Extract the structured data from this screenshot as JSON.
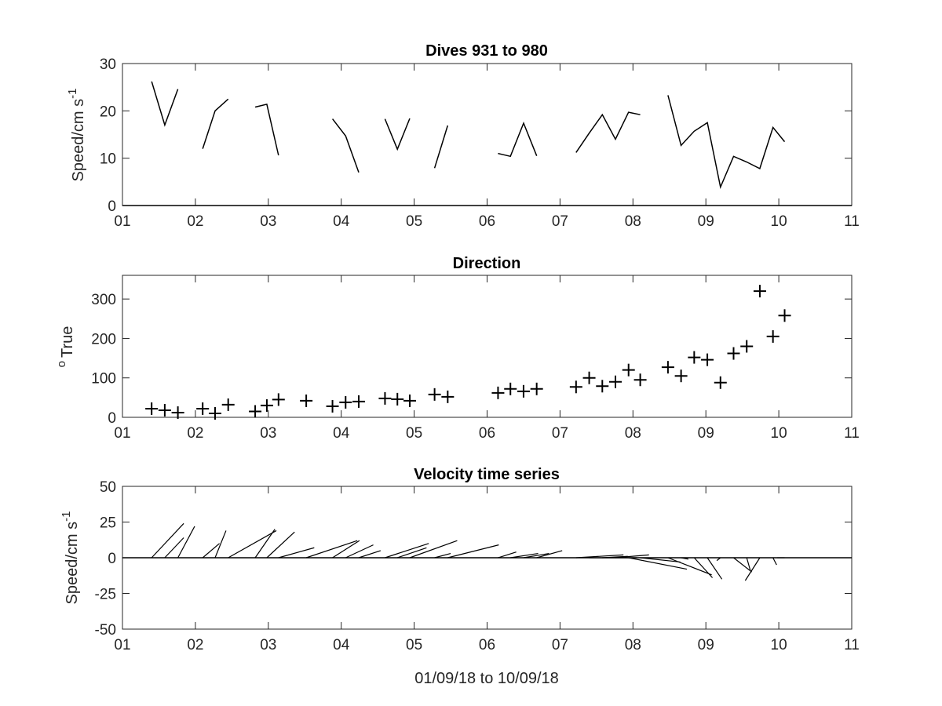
{
  "chart_data": [
    {
      "type": "line",
      "title": "Dives 931 to 980",
      "xlabel": "",
      "ylabel": "Speed/cm s",
      "ylabel_superscript": "-1",
      "xlim": [
        1,
        11
      ],
      "ylim": [
        0,
        30
      ],
      "xticks": [
        1,
        2,
        3,
        4,
        5,
        6,
        7,
        8,
        9,
        10,
        11
      ],
      "xtick_labels": [
        "01",
        "02",
        "03",
        "04",
        "05",
        "06",
        "07",
        "08",
        "09",
        "10",
        "11"
      ],
      "yticks": [
        0,
        10,
        20,
        30
      ],
      "ytick_labels": [
        "0",
        "10",
        "20",
        "30"
      ],
      "segments": [
        [
          [
            1.4,
            26.2
          ],
          [
            1.58,
            17.0
          ],
          [
            1.76,
            24.6
          ]
        ],
        [
          [
            2.1,
            12.0
          ],
          [
            2.27,
            20.0
          ],
          [
            2.45,
            22.5
          ]
        ],
        [
          [
            2.82,
            20.8
          ],
          [
            2.98,
            21.4
          ],
          [
            3.14,
            10.6
          ]
        ],
        [
          [
            3.88,
            18.3
          ],
          [
            4.06,
            14.7
          ],
          [
            4.24,
            7.0
          ]
        ],
        [
          [
            4.6,
            18.3
          ],
          [
            4.77,
            11.9
          ],
          [
            4.94,
            18.4
          ]
        ],
        [
          [
            5.28,
            7.9
          ],
          [
            5.46,
            16.9
          ]
        ],
        [
          [
            6.15,
            11.0
          ],
          [
            6.32,
            10.4
          ],
          [
            6.5,
            17.4
          ],
          [
            6.68,
            10.5
          ]
        ],
        [
          [
            7.22,
            11.2
          ],
          [
            7.4,
            15.3
          ],
          [
            7.58,
            19.2
          ],
          [
            7.76,
            14.0
          ],
          [
            7.94,
            19.7
          ],
          [
            8.1,
            19.2
          ]
        ],
        [
          [
            8.48,
            23.3
          ],
          [
            8.66,
            12.7
          ],
          [
            8.84,
            15.7
          ],
          [
            9.02,
            17.5
          ],
          [
            9.2,
            3.9
          ],
          [
            9.38,
            10.4
          ],
          [
            9.56,
            9.2
          ],
          [
            9.74,
            7.8
          ],
          [
            9.92,
            16.5
          ],
          [
            10.08,
            13.5
          ]
        ]
      ]
    },
    {
      "type": "scatter",
      "title": "Direction",
      "xlabel": "",
      "ylabel": "True",
      "ylabel_superscript": "o",
      "xlim": [
        1,
        11
      ],
      "ylim": [
        0,
        360
      ],
      "xticks": [
        1,
        2,
        3,
        4,
        5,
        6,
        7,
        8,
        9,
        10,
        11
      ],
      "xtick_labels": [
        "01",
        "02",
        "03",
        "04",
        "05",
        "06",
        "07",
        "08",
        "09",
        "10",
        "11"
      ],
      "yticks": [
        0,
        100,
        200,
        300
      ],
      "ytick_labels": [
        "0",
        "100",
        "200",
        "300"
      ],
      "marker": "plus",
      "points": [
        [
          1.4,
          22
        ],
        [
          1.58,
          18
        ],
        [
          1.76,
          12
        ],
        [
          2.1,
          22
        ],
        [
          2.27,
          10
        ],
        [
          2.45,
          32
        ],
        [
          2.82,
          15
        ],
        [
          2.98,
          30
        ],
        [
          3.14,
          45
        ],
        [
          3.52,
          42
        ],
        [
          3.88,
          28
        ],
        [
          4.06,
          38
        ],
        [
          4.24,
          40
        ],
        [
          4.6,
          48
        ],
        [
          4.77,
          46
        ],
        [
          4.94,
          42
        ],
        [
          5.28,
          58
        ],
        [
          5.46,
          52
        ],
        [
          6.15,
          62
        ],
        [
          6.32,
          72
        ],
        [
          6.5,
          66
        ],
        [
          6.68,
          72
        ],
        [
          7.22,
          77
        ],
        [
          7.4,
          100
        ],
        [
          7.58,
          79
        ],
        [
          7.76,
          90
        ],
        [
          7.94,
          120
        ],
        [
          8.1,
          95
        ],
        [
          8.48,
          127
        ],
        [
          8.66,
          105
        ],
        [
          8.84,
          152
        ],
        [
          9.02,
          146
        ],
        [
          9.2,
          88
        ],
        [
          9.38,
          162
        ],
        [
          9.56,
          180
        ],
        [
          9.74,
          320
        ],
        [
          9.92,
          205
        ],
        [
          10.08,
          258
        ]
      ]
    },
    {
      "type": "line",
      "subtype": "stick-plot",
      "title": "Velocity time series",
      "xlabel": "01/09/18 to 10/09/18",
      "ylabel": "Speed/cm s",
      "ylabel_superscript": "-1",
      "xlim": [
        1,
        11
      ],
      "ylim": [
        -50,
        50
      ],
      "xticks": [
        1,
        2,
        3,
        4,
        5,
        6,
        7,
        8,
        9,
        10,
        11
      ],
      "xtick_labels": [
        "01",
        "02",
        "03",
        "04",
        "05",
        "06",
        "07",
        "08",
        "09",
        "10",
        "11"
      ],
      "yticks": [
        50,
        25,
        0,
        -25,
        -50
      ],
      "ytick_labels": [
        "50",
        "25",
        "0",
        "-25",
        "-50"
      ],
      "sticks": [
        [
          1.4,
          0.44,
          24
        ],
        [
          1.58,
          0.26,
          14
        ],
        [
          1.76,
          0.23,
          22
        ],
        [
          2.1,
          0.23,
          10
        ],
        [
          2.27,
          0.15,
          19
        ],
        [
          2.45,
          0.66,
          19
        ],
        [
          2.82,
          0.27,
          20
        ],
        [
          2.98,
          0.38,
          18
        ],
        [
          3.14,
          0.49,
          7
        ],
        [
          3.52,
          0.7,
          12
        ],
        [
          3.88,
          0.37,
          12
        ],
        [
          4.06,
          0.38,
          9
        ],
        [
          4.24,
          0.3,
          5
        ],
        [
          4.6,
          0.6,
          10
        ],
        [
          4.77,
          0.4,
          7
        ],
        [
          4.94,
          0.65,
          12
        ],
        [
          5.28,
          0.22,
          3
        ],
        [
          5.46,
          0.7,
          9
        ],
        [
          6.15,
          0.25,
          4
        ],
        [
          6.32,
          0.38,
          3
        ],
        [
          6.5,
          0.35,
          3
        ],
        [
          6.68,
          0.35,
          5
        ],
        [
          7.22,
          0.65,
          2
        ],
        [
          7.4,
          0.65,
          0
        ],
        [
          7.58,
          0.35,
          1
        ],
        [
          7.76,
          0.46,
          2
        ],
        [
          7.94,
          0.8,
          -8
        ],
        [
          8.1,
          0.55,
          -3
        ],
        [
          8.48,
          0.6,
          -12
        ],
        [
          8.66,
          0.1,
          -1
        ],
        [
          8.84,
          0.25,
          -14
        ],
        [
          9.02,
          0.2,
          -15
        ],
        [
          9.2,
          -0.05,
          -2
        ],
        [
          9.38,
          0.25,
          -10
        ],
        [
          9.56,
          0.05,
          -9
        ],
        [
          9.74,
          -0.2,
          -16
        ],
        [
          9.92,
          0.05,
          -5
        ],
        [
          10.08,
          -0.1,
          0
        ]
      ]
    }
  ]
}
